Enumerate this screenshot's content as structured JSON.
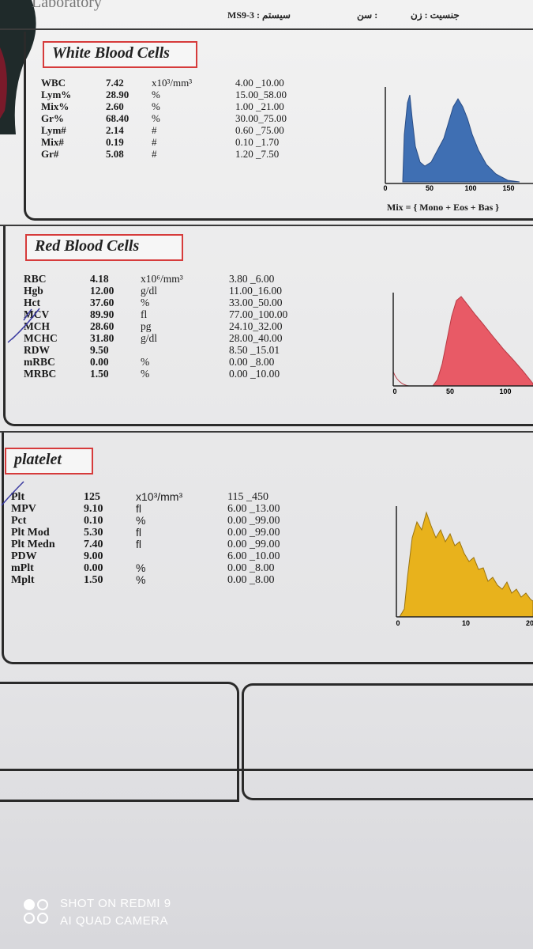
{
  "header": {
    "lab_fragment": "Laboratory",
    "sample_code": "MS9-3 : سیستم",
    "age_label": "سن :",
    "gender_label": "جنسیت : زن"
  },
  "wbc": {
    "title": "White Blood Cells",
    "names": [
      "WBC",
      "Lym%",
      "Mix%",
      "Gr%",
      "Lym#",
      "Mix#",
      "Gr#"
    ],
    "values": [
      "7.42",
      "28.90",
      "2.60",
      "68.40",
      "2.14",
      "0.19",
      "5.08"
    ],
    "units": [
      "x10³/mm³",
      "%",
      "%",
      "%",
      "#",
      "#",
      "#"
    ],
    "ranges": [
      "4.00 _10.00",
      "15.00_58.00",
      "1.00 _21.00",
      "30.00_75.00",
      "0.60 _75.00",
      "0.10 _1.70",
      "1.20 _7.50"
    ],
    "axis_ticks": [
      "0",
      "50",
      "100",
      "150"
    ],
    "caption": "Mix = { Mono + Eos + Bas }",
    "color": "#3f6fb3"
  },
  "rbc": {
    "title": "Red Blood Cells",
    "names": [
      "RBC",
      "Hgb",
      "Hct",
      "MCV",
      "MCH",
      "MCHC",
      "RDW",
      "mRBC",
      "MRBC"
    ],
    "values": [
      "4.18",
      "12.00",
      "37.60",
      "89.90",
      "28.60",
      "31.80",
      "9.50",
      "0.00",
      "1.50"
    ],
    "units": [
      "x10⁶/mm³",
      "g/dl",
      "%",
      "fl",
      "pg",
      "g/dl",
      "",
      "%",
      "%"
    ],
    "ranges": [
      "3.80 _6.00",
      "11.00_16.00",
      "33.00_50.00",
      "77.00_100.00",
      "24.10_32.00",
      "28.00_40.00",
      "8.50 _15.01",
      "0.00 _8.00",
      "0.00 _10.00"
    ],
    "axis_ticks": [
      "0",
      "50",
      "100"
    ],
    "color": "#e85a66"
  },
  "plt": {
    "title": "platelet",
    "names": [
      "Plt",
      "MPV",
      "Pct",
      "Plt Mod",
      "Plt Medn",
      "PDW",
      "mPlt",
      "Mplt"
    ],
    "values": [
      "125",
      "9.10",
      "0.10",
      "5.30",
      "7.40",
      "9.00",
      "0.00",
      "1.50"
    ],
    "units": [
      "x10³/mm³",
      "fl",
      "%",
      "fl",
      "fl",
      "",
      "%",
      "%"
    ],
    "ranges": [
      "115 _450",
      "6.00 _13.00",
      "0.00 _99.00",
      "0.00 _99.00",
      "0.00 _99.00",
      "6.00 _10.00",
      "0.00 _8.00",
      "0.00 _8.00"
    ],
    "axis_ticks": [
      "0",
      "10",
      "20"
    ],
    "color": "#e8b21c"
  },
  "watermark": {
    "line1": "SHOT ON REDMI 9",
    "line2": "AI QUAD CAMERA"
  }
}
